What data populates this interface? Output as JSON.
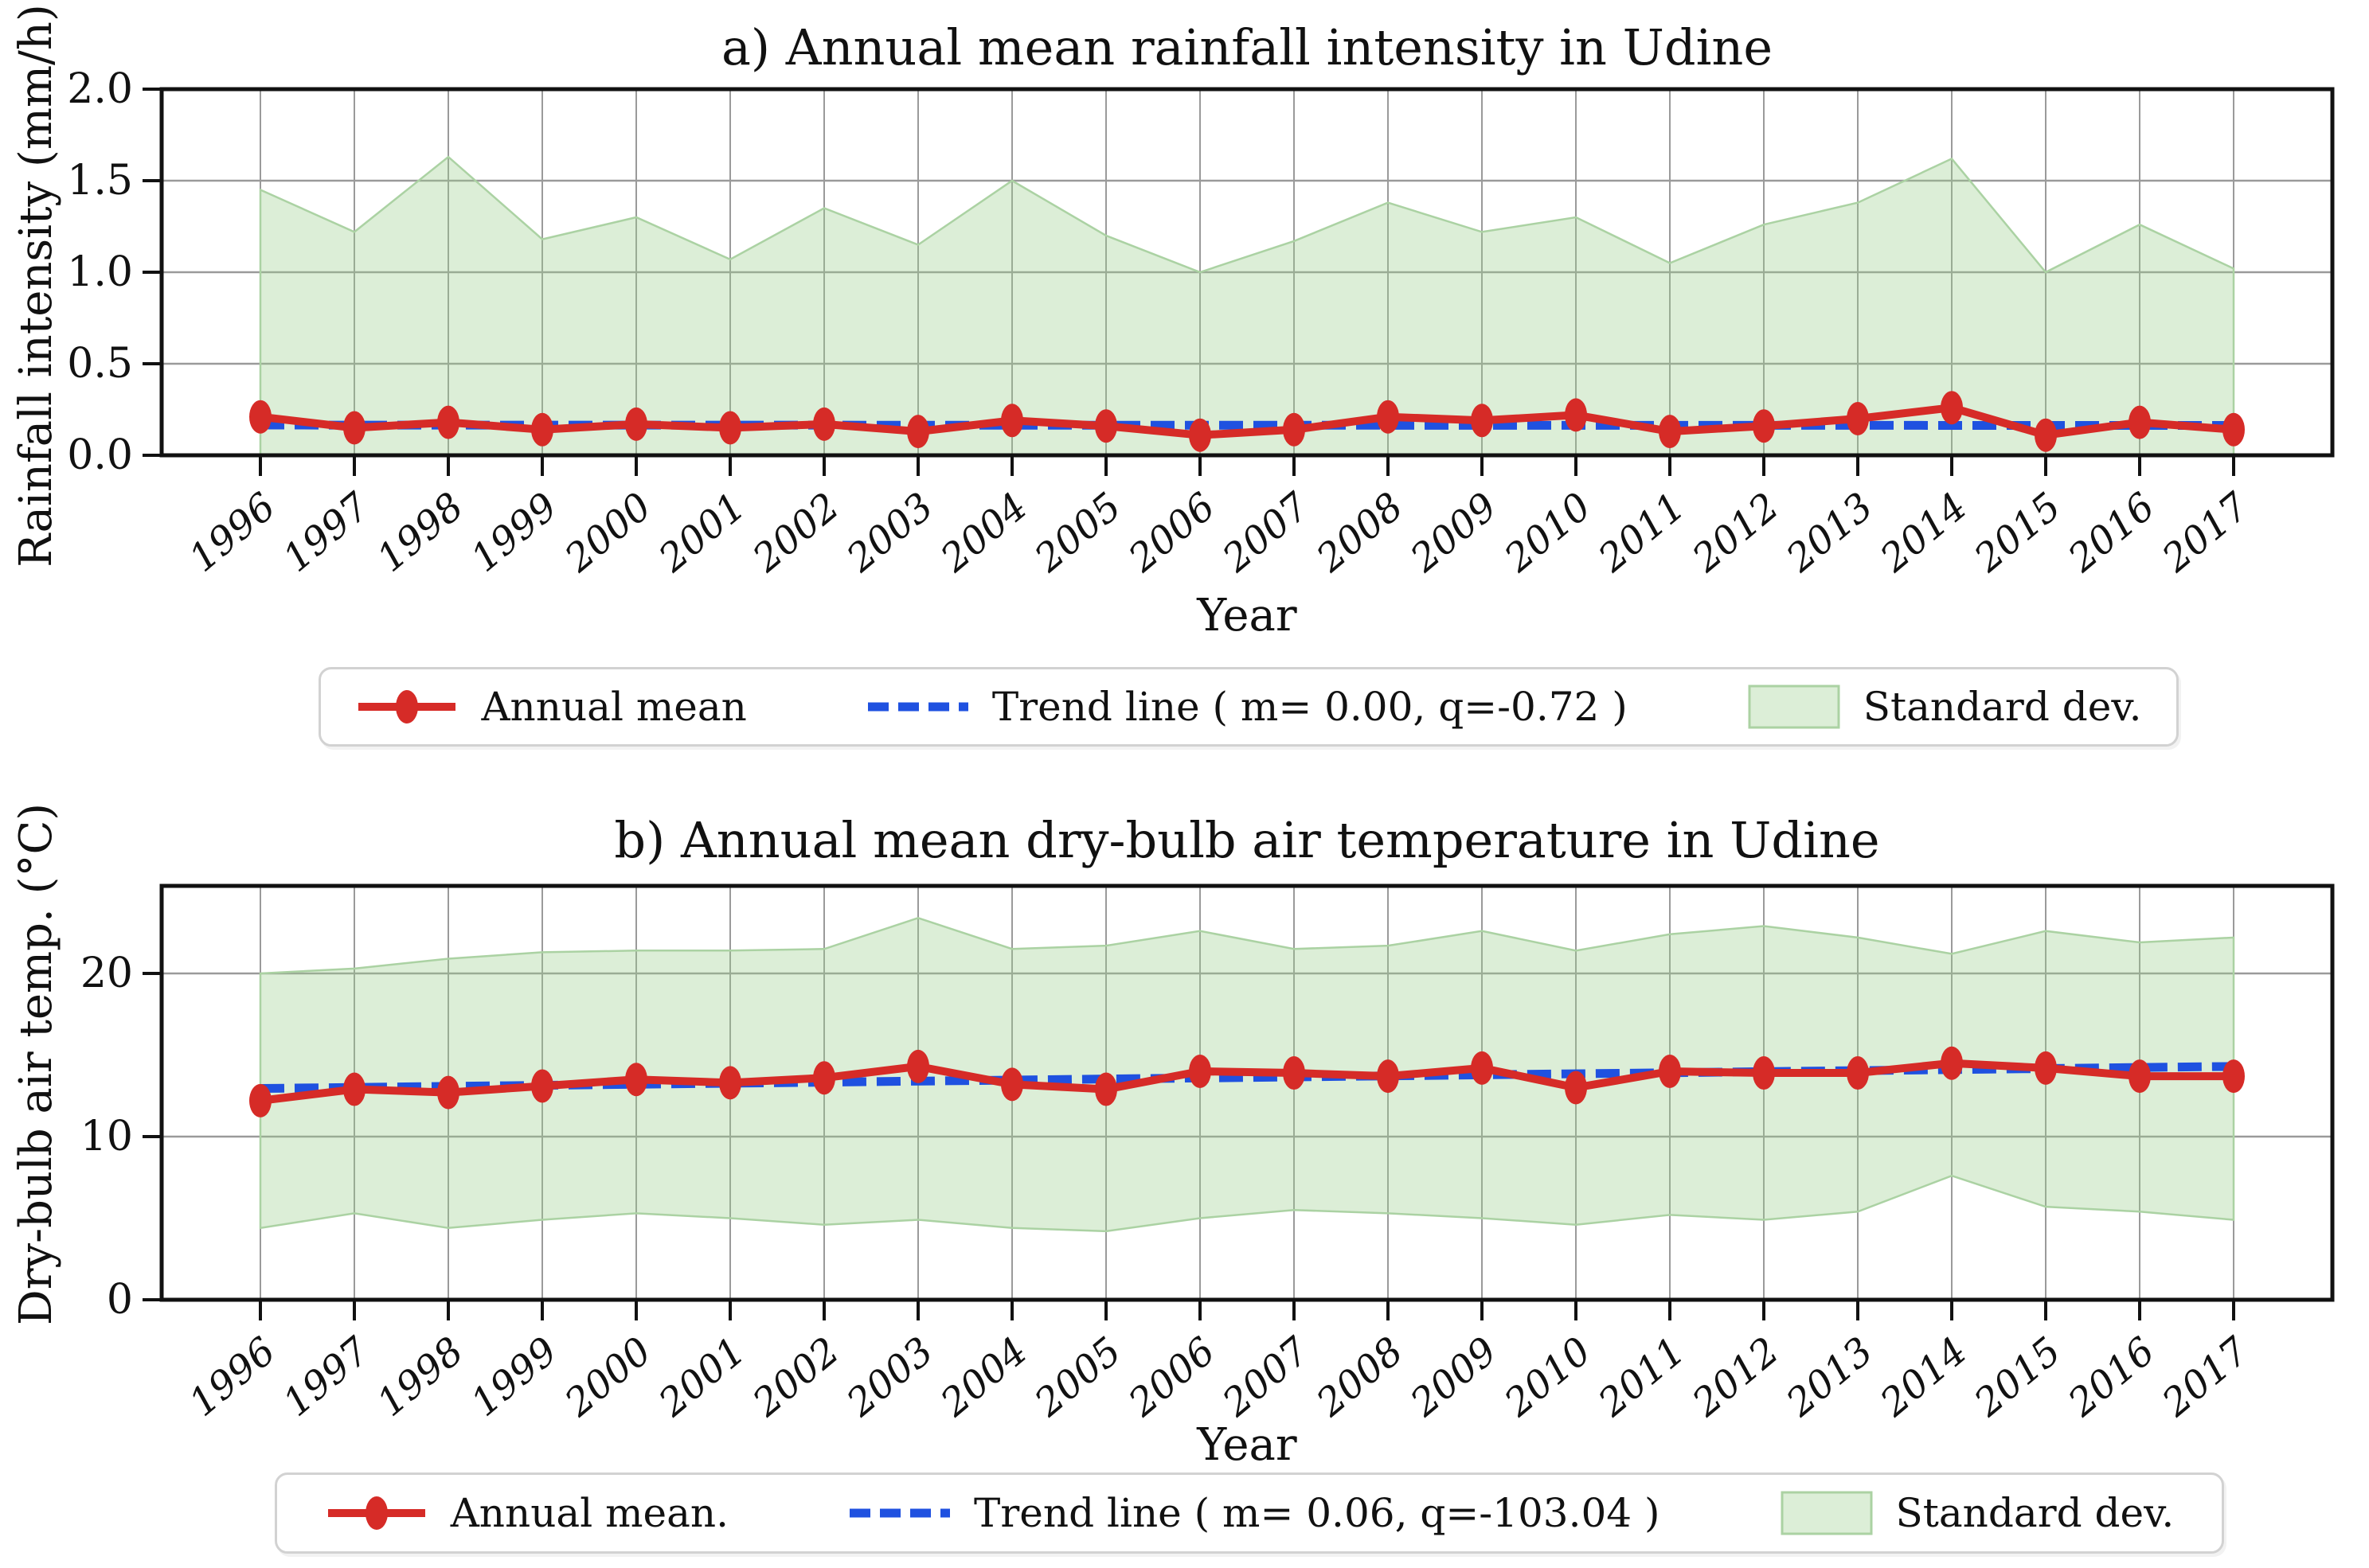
{
  "figure": {
    "background": "#ffffff",
    "colors": {
      "annual_mean": "#d62b27",
      "trend": "#1f51e0",
      "std_band_fill": "rgba(154,205,141,0.35)",
      "std_band_edge": "#abd2a3",
      "grid": "#9a9a9a",
      "spine": "#111111",
      "tick_label": "#111111",
      "legend_border": "#d2d2d2"
    }
  },
  "chart_data": [
    {
      "id": "a",
      "type": "line",
      "title": "a) Annual mean rainfall intensity in Udine",
      "xlabel": "Year",
      "ylabel": "Rainfall intensity (mm/h)",
      "x": [
        1996,
        1997,
        1998,
        1999,
        2000,
        2001,
        2002,
        2003,
        2004,
        2005,
        2006,
        2007,
        2008,
        2009,
        2010,
        2011,
        2012,
        2013,
        2014,
        2015,
        2016,
        2017
      ],
      "xtick_labels": [
        "1996",
        "1997",
        "1998",
        "1999",
        "2000",
        "2001",
        "2002",
        "2003",
        "2004",
        "2005",
        "2006",
        "2007",
        "2008",
        "2009",
        "2010",
        "2011",
        "2012",
        "2013",
        "2014",
        "2015",
        "2016",
        "2017"
      ],
      "yticks": [
        0.0,
        0.5,
        1.0,
        1.5,
        2.0
      ],
      "ytick_labels": [
        "0.0",
        "0.5",
        "1.0",
        "1.5",
        "2.0"
      ],
      "ylim": [
        0,
        2.0
      ],
      "grid": true,
      "legend_position": "below-center",
      "series": [
        {
          "role": "annual_mean",
          "name": "Annual mean",
          "type": "line+markers",
          "values": [
            0.21,
            0.15,
            0.18,
            0.14,
            0.17,
            0.15,
            0.17,
            0.13,
            0.19,
            0.16,
            0.11,
            0.14,
            0.21,
            0.19,
            0.22,
            0.13,
            0.16,
            0.2,
            0.26,
            0.11,
            0.18,
            0.14
          ]
        },
        {
          "role": "trend",
          "name": "Trend line ( m= 0.00, q=-0.72 )",
          "type": "dashed-line",
          "m": 0.0,
          "q": -0.72,
          "endpoints": [
            0.165,
            0.163
          ]
        },
        {
          "role": "std_band",
          "name": "Standard dev.",
          "type": "area-band",
          "upper": [
            1.45,
            1.22,
            1.63,
            1.18,
            1.3,
            1.07,
            1.35,
            1.15,
            1.5,
            1.2,
            1.0,
            1.17,
            1.38,
            1.22,
            1.3,
            1.05,
            1.26,
            1.38,
            1.62,
            1.0,
            1.26,
            1.02
          ],
          "lower": [
            0,
            0,
            0,
            0,
            0,
            0,
            0,
            0,
            0,
            0,
            0,
            0,
            0,
            0,
            0,
            0,
            0,
            0,
            0,
            0,
            0,
            0
          ]
        }
      ]
    },
    {
      "id": "b",
      "type": "line",
      "title": "b) Annual mean dry-bulb air temperature in Udine",
      "xlabel": "Year",
      "ylabel": "Dry-bulb air temp. (°C)",
      "x": [
        1996,
        1997,
        1998,
        1999,
        2000,
        2001,
        2002,
        2003,
        2004,
        2005,
        2006,
        2007,
        2008,
        2009,
        2010,
        2011,
        2012,
        2013,
        2014,
        2015,
        2016,
        2017
      ],
      "xtick_labels": [
        "1996",
        "1997",
        "1998",
        "1999",
        "2000",
        "2001",
        "2002",
        "2003",
        "2004",
        "2005",
        "2006",
        "2007",
        "2008",
        "2009",
        "2010",
        "2011",
        "2012",
        "2013",
        "2014",
        "2015",
        "2016",
        "2017"
      ],
      "yticks": [
        0,
        10,
        20
      ],
      "ytick_labels": [
        "0",
        "10",
        "20"
      ],
      "ylim": [
        0,
        25.4
      ],
      "grid": true,
      "legend_position": "below-center",
      "series": [
        {
          "role": "annual_mean",
          "name": "Annual mean.",
          "type": "line+markers",
          "values": [
            12.2,
            12.9,
            12.7,
            13.1,
            13.5,
            13.3,
            13.6,
            14.3,
            13.2,
            12.9,
            14.0,
            13.9,
            13.7,
            14.2,
            13.0,
            14.0,
            13.9,
            13.9,
            14.5,
            14.2,
            13.7,
            13.7
          ]
        },
        {
          "role": "trend",
          "name": "Trend line ( m= 0.06, q=-103.04 )",
          "type": "dashed-line",
          "m": 0.06,
          "q": -103.04,
          "endpoints": [
            12.95,
            14.3
          ]
        },
        {
          "role": "std_band",
          "name": "Standard dev.",
          "type": "area-band",
          "upper": [
            20.0,
            20.3,
            20.9,
            21.3,
            21.4,
            21.4,
            21.5,
            23.4,
            21.5,
            21.7,
            22.6,
            21.5,
            21.7,
            22.6,
            21.4,
            22.4,
            22.9,
            22.2,
            21.2,
            22.6,
            21.9,
            22.2
          ],
          "lower": [
            4.4,
            5.3,
            4.4,
            4.9,
            5.3,
            5.0,
            4.6,
            4.9,
            4.4,
            4.2,
            5.0,
            5.5,
            5.3,
            5.0,
            4.6,
            5.2,
            4.9,
            5.4,
            7.6,
            5.7,
            5.4,
            4.9
          ]
        }
      ]
    }
  ]
}
